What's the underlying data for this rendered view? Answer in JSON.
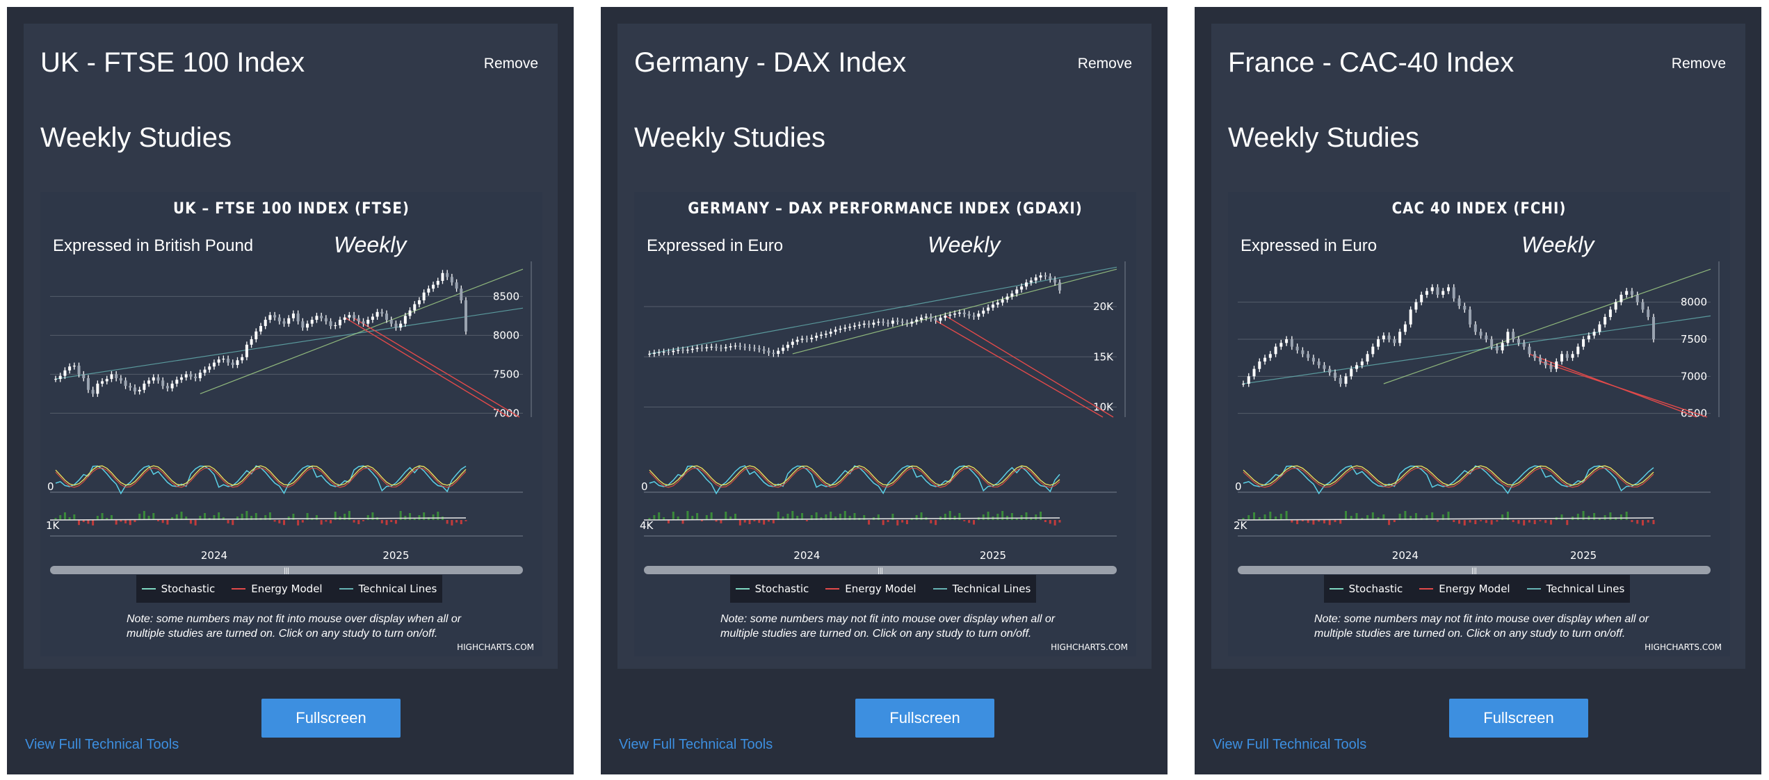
{
  "colors": {
    "page": "#ffffff",
    "panel": "#282e3b",
    "inner": "#313949",
    "chart_bg": "#2e3748",
    "button": "#3d8fe0",
    "link": "#3d8fe0",
    "stochastic": "#7ed7c1",
    "energy": "#e24a4a",
    "technical": "#66b3b3",
    "price": "#ffffff",
    "volume_up": "#3a8a3a",
    "volume_down": "#c23b3b"
  },
  "panels": [
    {
      "title": "UK - FTSE 100 Index",
      "remove_label": "Remove",
      "subtitle": "Weekly Studies",
      "chart_title": "UK – FTSE 100 INDEX (FTSE)",
      "expressed": "Expressed in British Pound",
      "period": "Weekly",
      "legend": [
        "Stochastic",
        "Energy Model",
        "Technical Lines"
      ],
      "note": "Note: some numbers may not fit into mouse over display when all or multiple studies are turned on. Click on any study to turn on/off.",
      "credits": "HIGHCHARTS.COM",
      "button_label": "Fullscreen",
      "link_label": "View Full Technical Tools",
      "price_ticks": [
        "8500",
        "8000",
        "7500",
        "7000"
      ],
      "osc_tick": "0",
      "vol_tick": "1K",
      "x_ticks": [
        "2024",
        "2025"
      ]
    },
    {
      "title": "Germany - DAX Index",
      "remove_label": "Remove",
      "subtitle": "Weekly Studies",
      "chart_title": "GERMANY – DAX PERFORMANCE INDEX (GDAXI)",
      "expressed": "Expressed in Euro",
      "period": "Weekly",
      "legend": [
        "Stochastic",
        "Energy Model",
        "Technical Lines"
      ],
      "note": "Note: some numbers may not fit into mouse over display when all or multiple studies are turned on. Click on any study to turn on/off.",
      "credits": "HIGHCHARTS.COM",
      "button_label": "Fullscreen",
      "link_label": "View Full Technical Tools",
      "price_ticks": [
        "20K",
        "15K",
        "10K"
      ],
      "osc_tick": "0",
      "vol_tick": "4K",
      "x_ticks": [
        "2024",
        "2025"
      ]
    },
    {
      "title": "France - CAC-40 Index",
      "remove_label": "Remove",
      "subtitle": "Weekly Studies",
      "chart_title": "CAC 40 INDEX (FCHI)",
      "expressed": "Expressed in Euro",
      "period": "Weekly",
      "legend": [
        "Stochastic",
        "Energy Model",
        "Technical Lines"
      ],
      "note": "Note: some numbers may not fit into mouse over display when all or multiple studies are turned on. Click on any study to turn on/off.",
      "credits": "HIGHCHARTS.COM",
      "button_label": "Fullscreen",
      "link_label": "View Full Technical Tools",
      "price_ticks": [
        "8000",
        "7500",
        "7000",
        "6500"
      ],
      "osc_tick": "0",
      "vol_tick": "2K",
      "x_ticks": [
        "2024",
        "2025"
      ]
    }
  ],
  "chart_data": [
    {
      "type": "candlestick",
      "title": "UK – FTSE 100 INDEX (FTSE)",
      "subtitle": "Expressed in British Pound",
      "period": "Weekly",
      "y_ticks": [
        8500,
        8000,
        7500,
        7000
      ],
      "ylim": [
        6950,
        8950
      ],
      "x_ticks": [
        "2024",
        "2025"
      ],
      "series": [
        {
          "name": "Stochastic"
        },
        {
          "name": "Energy Model"
        },
        {
          "name": "Technical Lines"
        }
      ],
      "close": [
        7440,
        7480,
        7550,
        7600,
        7610,
        7500,
        7450,
        7300,
        7250,
        7380,
        7410,
        7440,
        7500,
        7450,
        7420,
        7350,
        7330,
        7280,
        7300,
        7380,
        7420,
        7460,
        7420,
        7350,
        7320,
        7380,
        7430,
        7460,
        7500,
        7470,
        7450,
        7520,
        7560,
        7600,
        7650,
        7690,
        7700,
        7650,
        7620,
        7680,
        7720,
        7880,
        7950,
        8050,
        8120,
        8200,
        8260,
        8230,
        8180,
        8150,
        8220,
        8280,
        8180,
        8100,
        8150,
        8200,
        8250,
        8220,
        8180,
        8120,
        8130,
        8200,
        8230,
        8260,
        8220,
        8180,
        8150,
        8200,
        8240,
        8300,
        8280,
        8200,
        8150,
        8100,
        8150,
        8250,
        8320,
        8400,
        8450,
        8550,
        8600,
        8650,
        8700,
        8800,
        8750,
        8680,
        8600,
        8450,
        8050
      ]
    },
    {
      "type": "candlestick",
      "title": "GERMANY – DAX PERFORMANCE INDEX (GDAXI)",
      "subtitle": "Expressed in Euro",
      "period": "Weekly",
      "y_ticks": [
        20000,
        15000,
        10000
      ],
      "ylim": [
        9000,
        24500
      ],
      "x_ticks": [
        "2024",
        "2025"
      ],
      "series": [
        {
          "name": "Stochastic"
        },
        {
          "name": "Energy Model"
        },
        {
          "name": "Technical Lines"
        }
      ],
      "close": [
        15300,
        15400,
        15450,
        15500,
        15480,
        15600,
        15700,
        15650,
        15700,
        15800,
        15900,
        15850,
        15950,
        16000,
        15900,
        15850,
        15950,
        16050,
        16100,
        16000,
        15950,
        15900,
        15850,
        15750,
        15600,
        15400,
        15300,
        15600,
        15900,
        16200,
        16500,
        16700,
        16800,
        16750,
        16900,
        17100,
        17200,
        17300,
        17500,
        17700,
        17800,
        17900,
        18000,
        18100,
        18200,
        18300,
        18200,
        18400,
        18500,
        18400,
        18300,
        18600,
        18500,
        18400,
        18300,
        18500,
        18700,
        18900,
        19000,
        18800,
        18600,
        18900,
        19100,
        19200,
        19300,
        19400,
        19250,
        19100,
        19000,
        19300,
        19600,
        19900,
        20200,
        20400,
        20700,
        21000,
        21300,
        21700,
        22000,
        22400,
        22600,
        22900,
        23100,
        23000,
        22700,
        22400,
        21600
      ]
    },
    {
      "type": "candlestick",
      "title": "CAC 40 INDEX (FCHI)",
      "subtitle": "Expressed in Euro",
      "period": "Weekly",
      "y_ticks": [
        8000,
        7500,
        7000,
        6500
      ],
      "ylim": [
        6450,
        8550
      ],
      "x_ticks": [
        "2024",
        "2025"
      ],
      "series": [
        {
          "name": "Stochastic"
        },
        {
          "name": "Energy Model"
        },
        {
          "name": "Technical Lines"
        }
      ],
      "close": [
        6900,
        7000,
        7100,
        7200,
        7250,
        7300,
        7400,
        7450,
        7500,
        7400,
        7350,
        7300,
        7250,
        7200,
        7150,
        7100,
        7050,
        6980,
        6900,
        7000,
        7100,
        7150,
        7200,
        7300,
        7400,
        7500,
        7550,
        7500,
        7450,
        7600,
        7700,
        7900,
        8000,
        8100,
        8150,
        8200,
        8100,
        8150,
        8200,
        8050,
        7950,
        7900,
        7700,
        7600,
        7550,
        7500,
        7400,
        7350,
        7450,
        7600,
        7500,
        7450,
        7400,
        7300,
        7250,
        7200,
        7150,
        7100,
        7200,
        7300,
        7250,
        7300,
        7400,
        7500,
        7550,
        7600,
        7700,
        7800,
        7900,
        8000,
        8100,
        8150,
        8100,
        8000,
        7900,
        7800,
        7500
      ]
    }
  ]
}
